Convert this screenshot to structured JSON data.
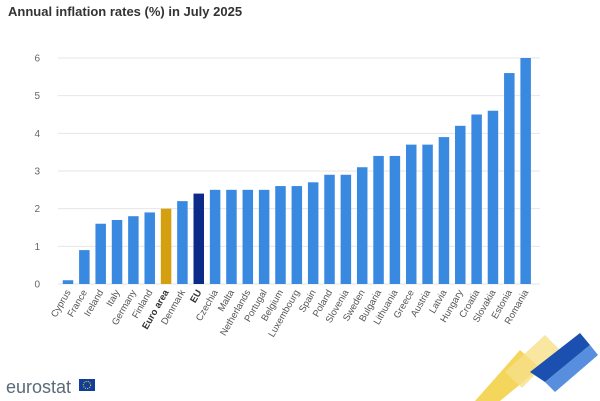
{
  "colors": {
    "default": "#3a89e0",
    "highlight_euro_area": "#d4a010",
    "highlight_eu": "#0c2a88",
    "grid": "#e6e6e6",
    "axis_text": "#666666"
  },
  "chart_data": {
    "type": "bar",
    "title": "Annual inflation rates (%) in July 2025",
    "xlabel": "",
    "ylabel": "",
    "ylim": [
      0,
      6
    ],
    "yticks": [
      0,
      1,
      2,
      3,
      4,
      5,
      6
    ],
    "grid": true,
    "categories": [
      "Cyprus",
      "France",
      "Ireland",
      "Italy",
      "Germany",
      "Finland",
      "Euro area",
      "Denmark",
      "EU",
      "Czechia",
      "Malta",
      "Netherlands",
      "Portugal",
      "Belgium",
      "Luxembourg",
      "Spain",
      "Poland",
      "Slovenia",
      "Sweden",
      "Bulgaria",
      "Lithuania",
      "Greece",
      "Austria",
      "Latvia",
      "Hungary",
      "Croatia",
      "Slovakia",
      "Estonia",
      "Romania"
    ],
    "values": [
      0.1,
      0.9,
      1.6,
      1.7,
      1.8,
      1.9,
      2.0,
      2.2,
      2.4,
      2.5,
      2.5,
      2.5,
      2.5,
      2.6,
      2.6,
      2.7,
      2.9,
      2.9,
      3.1,
      3.4,
      3.4,
      3.7,
      3.7,
      3.9,
      4.2,
      4.5,
      4.6,
      5.6,
      6.0
    ],
    "highlights": {
      "Euro area": "highlight_euro_area",
      "EU": "highlight_eu"
    },
    "bold_categories": [
      "Euro area",
      "EU"
    ]
  },
  "footer": {
    "logo_text": "eurostat"
  }
}
